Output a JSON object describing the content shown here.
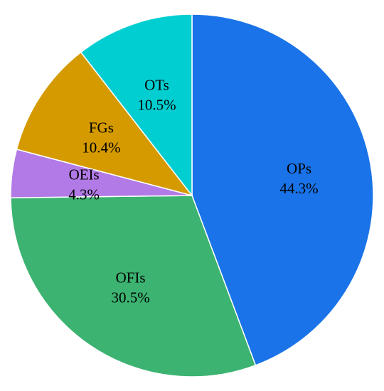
{
  "chart_data": {
    "type": "pie",
    "title": "",
    "start": "12 o'clock",
    "direction": "clockwise",
    "slices": [
      {
        "name": "OPs",
        "value": 44.3,
        "label": "44.3%",
        "color": "#1a73e8"
      },
      {
        "name": "OFIs",
        "value": 30.5,
        "label": "30.5%",
        "color": "#3cb371"
      },
      {
        "name": "OEIs",
        "value": 4.3,
        "label": "4.3%",
        "color": "#b27ae6"
      },
      {
        "name": "FGs",
        "value": 10.4,
        "label": "10.4%",
        "color": "#d49a00"
      },
      {
        "name": "OTs",
        "value": 10.5,
        "label": "10.5%",
        "color": "#00ced1"
      }
    ]
  }
}
